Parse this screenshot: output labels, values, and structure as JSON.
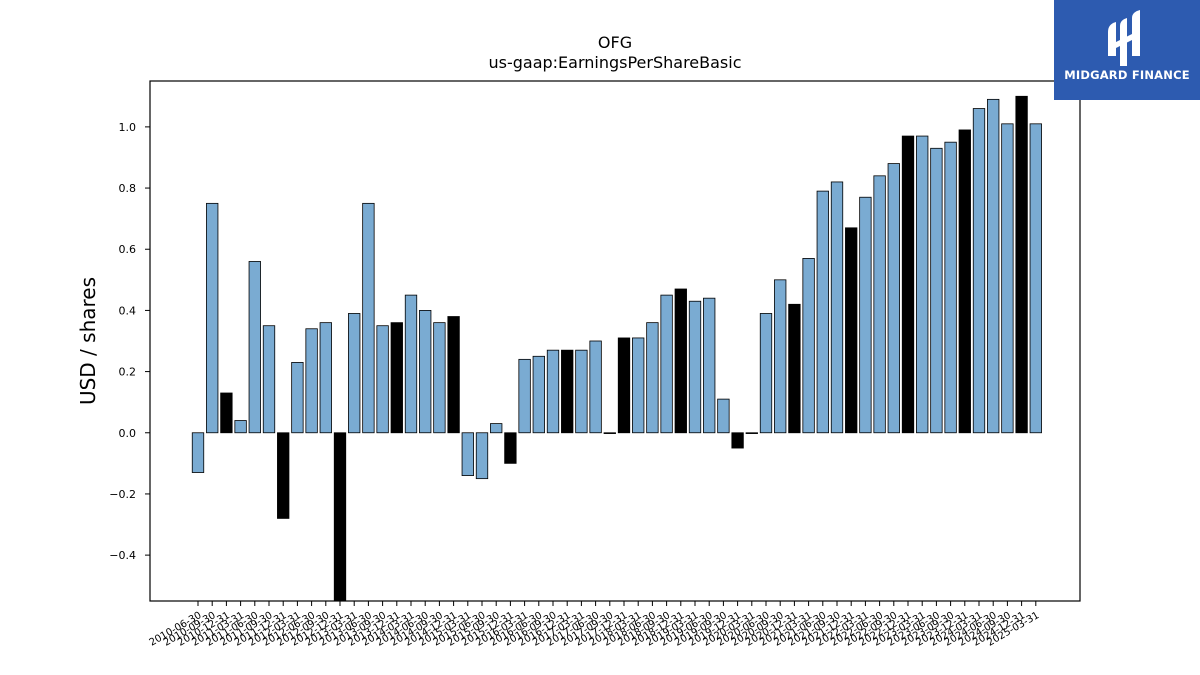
{
  "brand": {
    "logo_text": "MIDGARD FINANCE",
    "logo_bg": "#2d5bb0"
  },
  "chart_data": {
    "type": "bar",
    "title": "OFG",
    "subtitle": "us-gaap:EarningsPerShareBasic",
    "xlabel": "",
    "ylabel": "USD / shares",
    "ylim": [
      -0.55,
      1.15
    ],
    "yticks": [
      -0.4,
      -0.2,
      0.0,
      0.2,
      0.4,
      0.6,
      0.8,
      1.0
    ],
    "ytick_labels": [
      "−0.4",
      "−0.2",
      "0.0",
      "0.2",
      "0.4",
      "0.6",
      "0.8",
      "1.0"
    ],
    "grid": false,
    "colors": {
      "quarterly": "#7aabd2",
      "fiscal_year_end": "#000000",
      "edge": "#000000"
    },
    "categories": [
      "2010-06-30",
      "2010-09-30",
      "2010-12-31",
      "2011-03-31",
      "2011-06-30",
      "2011-09-30",
      "2011-12-31",
      "2012-03-31",
      "2012-06-30",
      "2012-09-30",
      "2012-12-31",
      "2013-03-31",
      "2013-06-30",
      "2013-09-30",
      "2013-12-31",
      "2014-03-31",
      "2014-06-30",
      "2014-09-30",
      "2014-12-31",
      "2015-03-31",
      "2015-06-30",
      "2015-09-30",
      "2015-12-31",
      "2016-03-31",
      "2016-06-30",
      "2016-09-30",
      "2016-12-31",
      "2017-03-31",
      "2017-06-30",
      "2017-09-30",
      "2017-12-31",
      "2018-03-31",
      "2018-06-30",
      "2018-09-30",
      "2018-12-31",
      "2019-03-31",
      "2019-06-30",
      "2019-09-30",
      "2019-12-31",
      "2020-03-31",
      "2020-06-30",
      "2020-09-30",
      "2020-12-31",
      "2021-03-31",
      "2021-06-30",
      "2021-09-30",
      "2021-12-31",
      "2022-03-31",
      "2022-06-30",
      "2022-09-30",
      "2022-12-31",
      "2023-03-31",
      "2023-06-30",
      "2023-09-30",
      "2023-12-31",
      "2024-03-31",
      "2024-06-30",
      "2024-09-30",
      "2024-12-31",
      "2025-03-31"
    ],
    "values": [
      -0.13,
      0.75,
      0.13,
      0.04,
      0.56,
      0.35,
      -0.28,
      0.23,
      0.34,
      0.36,
      -0.56,
      0.39,
      0.75,
      0.35,
      0.36,
      0.45,
      0.4,
      0.36,
      0.38,
      -0.14,
      -0.15,
      0.03,
      -0.1,
      0.24,
      0.25,
      0.27,
      0.27,
      0.27,
      0.3,
      0.0,
      0.31,
      0.31,
      0.36,
      0.45,
      0.47,
      0.43,
      0.44,
      0.11,
      -0.05,
      0.0,
      0.39,
      0.5,
      0.42,
      0.57,
      0.79,
      0.82,
      0.67,
      0.77,
      0.84,
      0.88,
      0.97,
      0.97,
      0.93,
      0.95,
      0.99,
      1.06,
      1.09,
      1.01,
      1.1,
      1.01
    ],
    "highlight_indices": [
      2,
      6,
      10,
      14,
      18,
      22,
      26,
      30,
      34,
      38,
      42,
      46,
      50,
      54,
      58
    ]
  }
}
